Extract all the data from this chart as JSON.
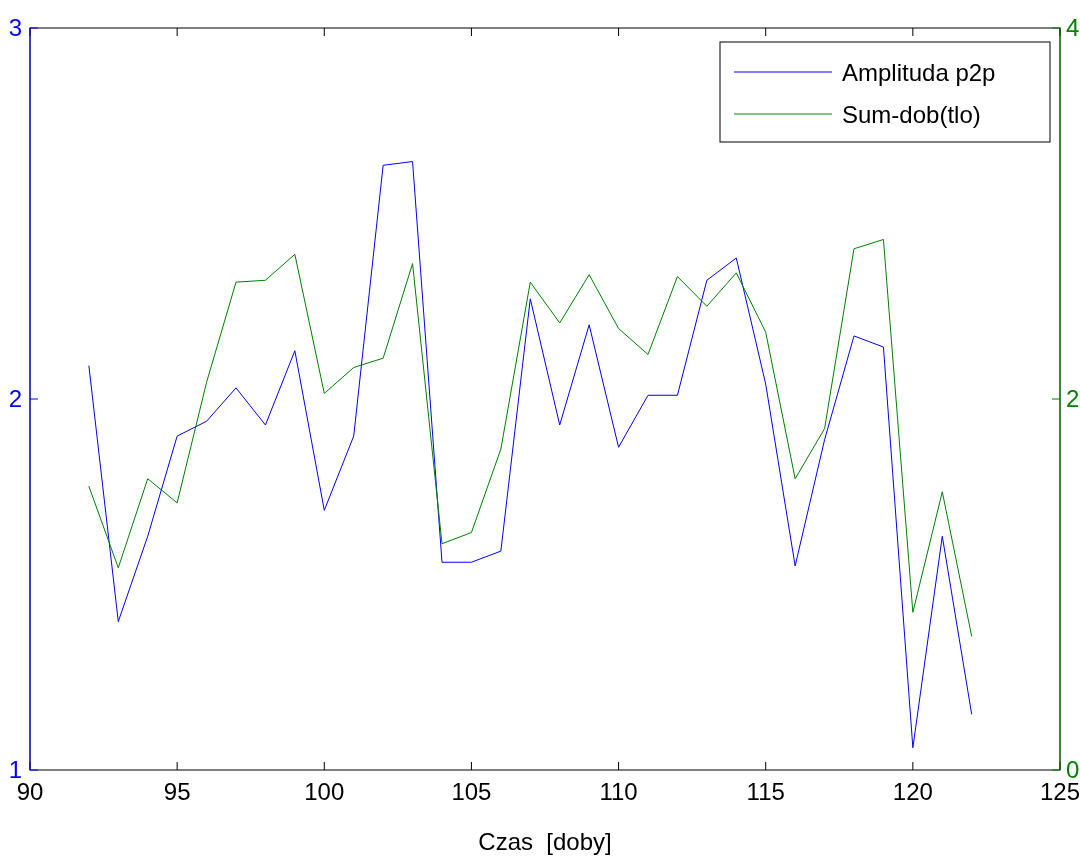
{
  "chart_data": {
    "type": "line",
    "xlabel": "Czas  [doby]",
    "x": [
      92,
      93,
      94,
      95,
      96,
      97,
      98,
      99,
      100,
      101,
      102,
      103,
      104,
      105,
      106,
      107,
      108,
      109,
      110,
      111,
      112,
      113,
      114,
      115,
      116,
      117,
      118,
      119,
      120,
      121,
      122
    ],
    "xlim": [
      90,
      125
    ],
    "xticks": [
      90,
      95,
      100,
      105,
      110,
      115,
      120,
      125
    ],
    "ylim": [
      1,
      3
    ],
    "yticks": [
      1,
      2,
      3
    ],
    "y2lim": [
      0,
      4
    ],
    "y2ticks": [
      0,
      2,
      4
    ],
    "legend": "top right",
    "grid": false,
    "series": [
      {
        "name": "Amplituda p2p",
        "color": "#0000ff",
        "values": [
          2.09,
          1.4,
          1.63,
          1.9,
          1.94,
          2.03,
          1.93,
          2.13,
          1.7,
          1.9,
          2.63,
          2.64,
          1.56,
          1.56,
          1.59,
          2.27,
          1.93,
          2.2,
          1.87,
          2.01,
          2.01,
          2.32,
          2.38,
          2.04,
          1.55,
          1.89,
          2.17,
          2.14,
          1.06,
          1.63,
          1.15
        ]
      },
      {
        "name": "Sum-dob(tlo)",
        "color": "#008000",
        "axis": "y2",
        "values": [
          1.53,
          1.09,
          1.57,
          1.44,
          2.09,
          2.63,
          2.64,
          2.78,
          2.03,
          2.17,
          2.22,
          2.73,
          1.22,
          1.28,
          1.73,
          2.63,
          2.41,
          2.67,
          2.38,
          2.24,
          2.66,
          2.5,
          2.68,
          2.36,
          1.57,
          1.84,
          2.81,
          2.86,
          0.85,
          1.5,
          0.72
        ]
      }
    ]
  }
}
